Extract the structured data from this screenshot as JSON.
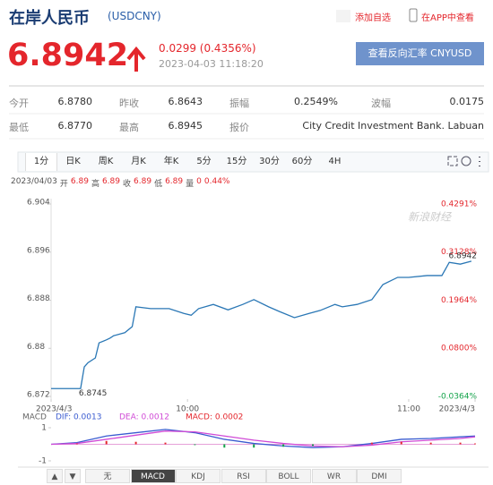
{
  "header": {
    "title": "在岸人民币",
    "code": "(USDCNY)",
    "actions": [
      "添加自选",
      "在APP中查看"
    ]
  },
  "quote": {
    "price": "6.8942",
    "change": "0.0299 (0.4356%)",
    "time": "2023-04-03 11:18:20",
    "button": "查看反向汇率 CNYUSD"
  },
  "stats": [
    [
      [
        "今开",
        "6.8780"
      ],
      [
        "昨收",
        "6.8643"
      ],
      [
        "振幅",
        "0.2549%"
      ],
      [
        "波幅",
        "0.0175"
      ]
    ],
    [
      [
        "最低",
        "6.8770"
      ],
      [
        "最高",
        "6.8945"
      ],
      [
        "报价",
        "City Credit Investment Bank. Labuan"
      ]
    ]
  ],
  "tabs": [
    "1分",
    "日K",
    "周K",
    "月K",
    "年K",
    "5分",
    "15分",
    "30分",
    "60分",
    "4H"
  ],
  "active_tab": 0,
  "info": {
    "date": "2023/04/03",
    "items": [
      [
        "开",
        "6.89"
      ],
      [
        "高",
        "6.89"
      ],
      [
        "收",
        "6.89"
      ],
      [
        "低",
        "6.89"
      ],
      [
        "量",
        "0"
      ]
    ],
    "pct": "0.44%"
  },
  "chart_data": [
    {
      "type": "line",
      "watermark": "新浪财经",
      "x": [
        563,
        571,
        572,
        573,
        575,
        576,
        578,
        579,
        580,
        583,
        585,
        586,
        590,
        595,
        599,
        601,
        603,
        607,
        611,
        615,
        618,
        622,
        625,
        629,
        633,
        636,
        640,
        642,
        646,
        650,
        653,
        657,
        660,
        665,
        669,
        671,
        674,
        677
      ],
      "series": [
        {
          "color": "#2a77b5",
          "values": [
            6.8733,
            6.8733,
            6.8769,
            6.8776,
            6.8784,
            6.8809,
            6.8814,
            6.8817,
            6.8821,
            6.8826,
            6.8836,
            6.8869,
            6.8866,
            6.8866,
            6.8858,
            6.8855,
            6.8866,
            6.8873,
            6.8864,
            6.8873,
            6.8881,
            6.8869,
            6.8861,
            6.8851,
            6.8858,
            6.8863,
            6.8873,
            6.8869,
            6.8873,
            6.8881,
            6.8906,
            6.8918,
            6.8918,
            6.8921,
            6.8921,
            6.8943,
            6.894,
            6.8945
          ]
        }
      ],
      "xlim": [
        563,
        678
      ],
      "xticks": [
        {
          "value": 563,
          "label": "2023/4/3"
        },
        {
          "value": 600,
          "label": "10:00"
        },
        {
          "value": 660,
          "label": "11:00"
        },
        {
          "value": 678,
          "label": "2023/4/3"
        }
      ],
      "ylim": [
        6.872,
        6.904
      ],
      "yticks": [
        6.872,
        6.88,
        6.888,
        6.896,
        6.904
      ],
      "y2lim": [
        -0.0364,
        0.4291
      ],
      "y2ticks": [
        {
          "value": -0.0364,
          "label": "-0.0364%"
        },
        {
          "value": 0.08,
          "label": "0.0800%"
        },
        {
          "value": 0.1964,
          "label": "0.1964%"
        },
        {
          "value": 0.3128,
          "label": "0.3128%"
        },
        {
          "value": 0.4291,
          "label": "0.4291%"
        }
      ],
      "up_color": "#e4262c",
      "down_color": "#13a34a",
      "annotations": [
        "6.8745",
        "6.8942"
      ]
    },
    {
      "type": "macd",
      "title": "MACD",
      "x": [
        563,
        570,
        578,
        586,
        594,
        602,
        610,
        618,
        626,
        634,
        642,
        650,
        658,
        666,
        674,
        678
      ],
      "series": [
        {
          "name": "DIF: 0.0013",
          "color": "#3a5bd0",
          "values": [
            0,
            0.1,
            0.5,
            0.7,
            0.9,
            0.7,
            0.3,
            0.05,
            -0.1,
            -0.2,
            -0.15,
            0.05,
            0.3,
            0.35,
            0.45,
            0.5
          ]
        },
        {
          "name": "DEA: 0.0012",
          "color": "#d04ad6",
          "values": [
            0,
            0.05,
            0.3,
            0.55,
            0.8,
            0.75,
            0.5,
            0.25,
            0.05,
            -0.1,
            -0.15,
            -0.05,
            0.15,
            0.25,
            0.35,
            0.45
          ]
        },
        {
          "name": "MACD: 0.0002",
          "color": "#e4262c",
          "down_color": "#13a34a",
          "bars": true,
          "values": [
            0,
            0.05,
            0.2,
            0.15,
            0.1,
            -0.05,
            -0.2,
            -0.2,
            -0.15,
            -0.1,
            0,
            0.1,
            0.15,
            0.1,
            0.1,
            0.05
          ]
        }
      ],
      "xlim": [
        563,
        678
      ],
      "ylim": [
        -1.5,
        1.5
      ],
      "yticks": [
        -1,
        1
      ]
    }
  ],
  "bottom_tabs": [
    "▲",
    "▼",
    "无",
    "MACD",
    "KDJ",
    "RSI",
    "BOLL",
    "WR",
    "DMI"
  ],
  "active_bottom": 3
}
